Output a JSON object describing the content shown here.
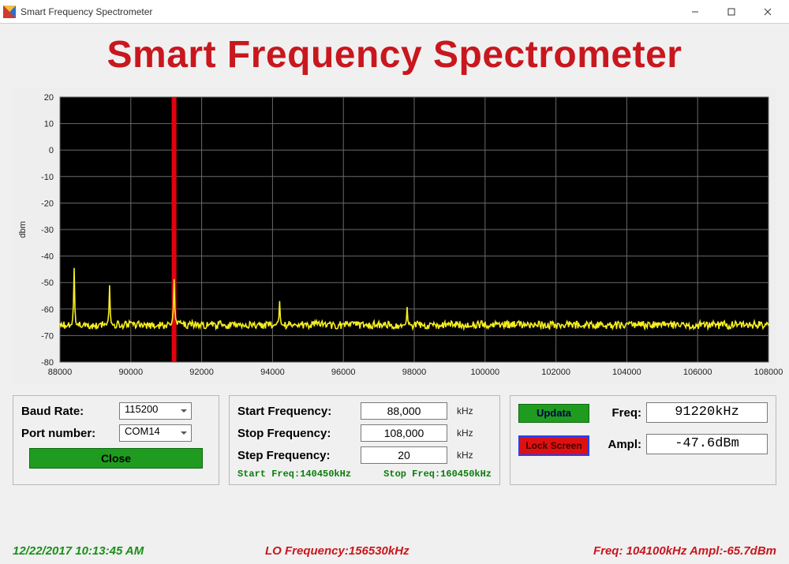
{
  "window": {
    "title": "Smart Frequency Spectrometer",
    "heading": "Smart Frequency Spectrometer",
    "heading_color": "#c8171e"
  },
  "chart": {
    "type": "line",
    "background_color": "#000000",
    "panel_bg": "#eeeeee",
    "grid_color": "#6a6a6a",
    "axis_text_color": "#222222",
    "ylabel": "dbm",
    "xlim": [
      88000,
      108000
    ],
    "ylim": [
      -80,
      20
    ],
    "xticks": [
      88000,
      90000,
      92000,
      94000,
      96000,
      98000,
      100000,
      102000,
      104000,
      106000,
      108000
    ],
    "yticks": [
      20,
      10,
      0,
      -10,
      -20,
      -30,
      -40,
      -50,
      -60,
      -70,
      -80
    ],
    "cursor": {
      "x": 91220,
      "color": "#e3000f",
      "width": 6
    },
    "trace": {
      "color": "#f7ef1e",
      "width": 1.6,
      "baseline": -66,
      "noise_amp": 1.5,
      "peaks": [
        {
          "x": 88400,
          "y": -45
        },
        {
          "x": 89400,
          "y": -51
        },
        {
          "x": 91220,
          "y": -47.6
        },
        {
          "x": 94200,
          "y": -57
        },
        {
          "x": 97800,
          "y": -60
        }
      ]
    },
    "tick_fontsize": 11,
    "ylabel_fontsize": 11
  },
  "left_panel": {
    "baud_label": "Baud Rate:",
    "baud_value": "115200",
    "port_label": "Port number:",
    "port_value": "COM14",
    "close_label": "Close"
  },
  "mid_panel": {
    "start_label": "Start Frequency:",
    "start_value": "88,000",
    "stop_label": "Stop Frequency:",
    "stop_value": "108,000",
    "step_label": "Step Frequency:",
    "step_value": "20",
    "unit": "kHz",
    "status_start": "Start Freq:140450kHz",
    "status_stop": "Stop Freq:160450kHz"
  },
  "right_panel": {
    "updata_label": "Updata",
    "lock_label": "Lock Screen",
    "freq_label": "Freq:",
    "freq_value": "91220kHz",
    "ampl_label": "Ampl:",
    "ampl_value": "-47.6dBm"
  },
  "status": {
    "timestamp": "12/22/2017 10:13:45 AM",
    "lo": "LO Frequency:156530kHz",
    "freq_ampl": "Freq:  104100kHz Ampl:-65.7dBm"
  }
}
